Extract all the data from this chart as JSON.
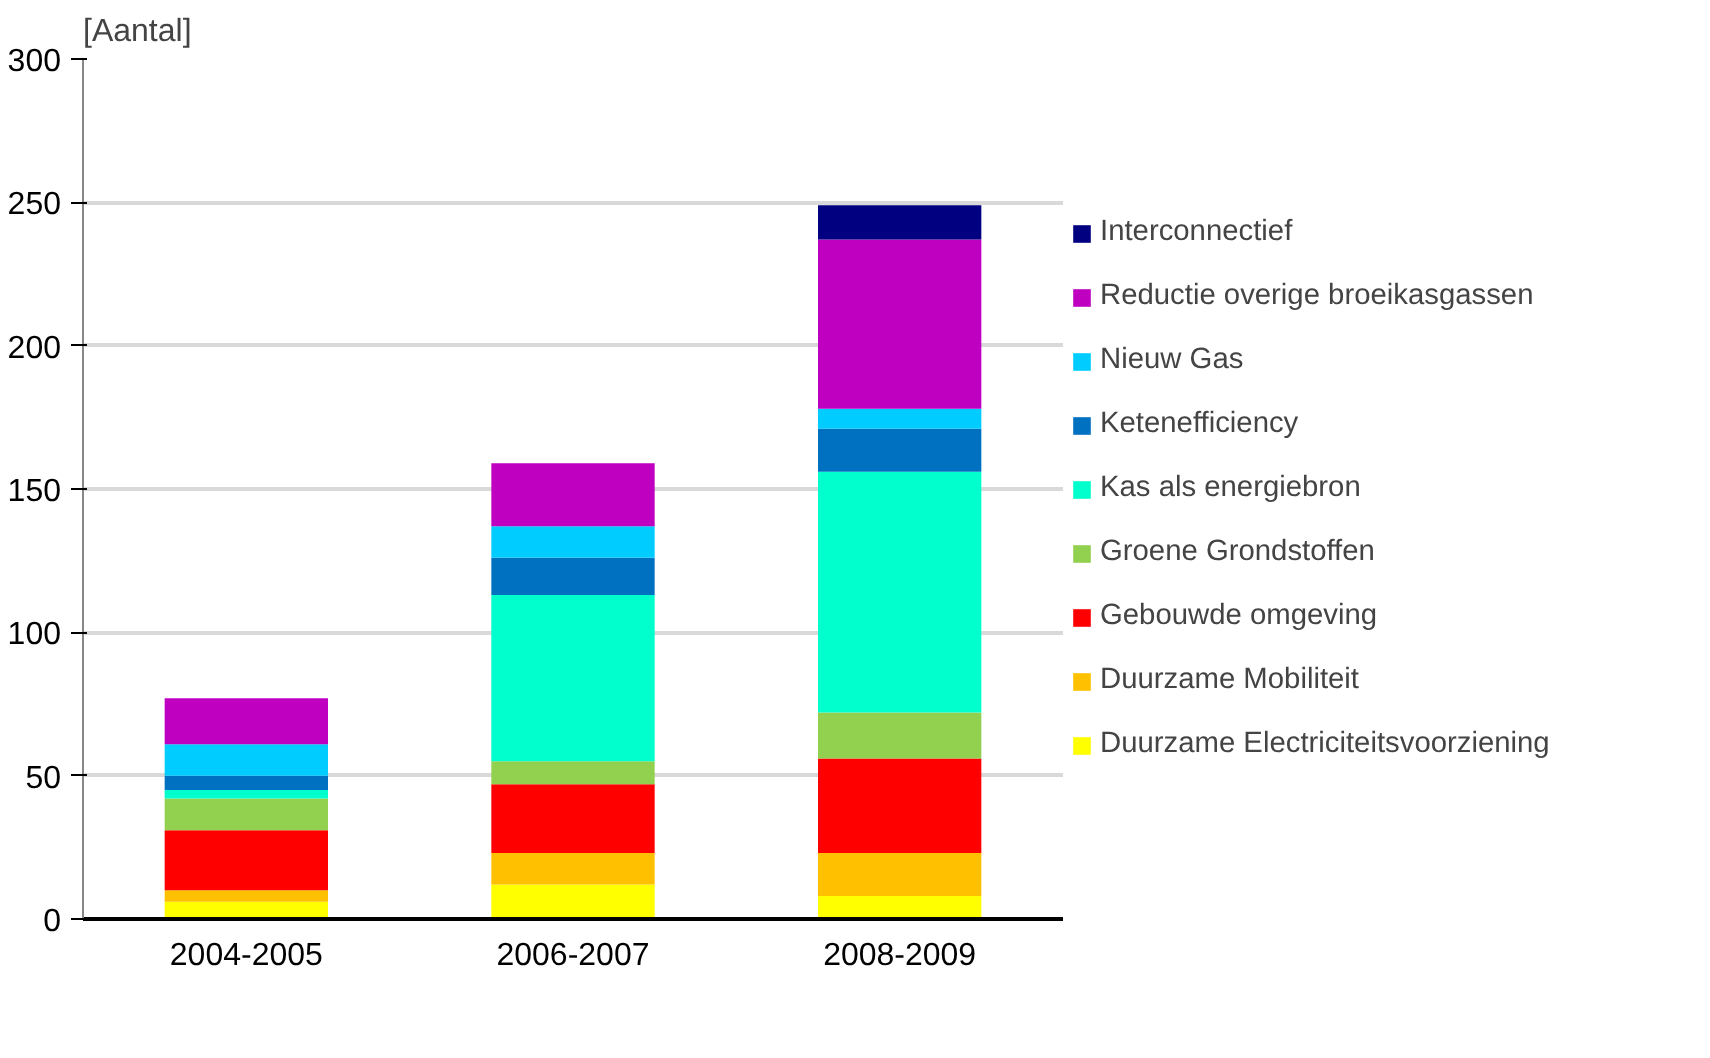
{
  "chart_data": {
    "type": "bar",
    "stacked": true,
    "ylabel": "[Aantal]",
    "categories": [
      "2004-2005",
      "2006-2007",
      "2008-2009"
    ],
    "series": [
      {
        "name": "Duurzame Electriciteitsvoorziening",
        "color": "#ffff00",
        "values": [
          6,
          12,
          8
        ]
      },
      {
        "name": "Duurzame Mobiliteit",
        "color": "#ffc000",
        "values": [
          4,
          11,
          15
        ]
      },
      {
        "name": "Gebouwde omgeving",
        "color": "#ff0000",
        "values": [
          21,
          24,
          33
        ]
      },
      {
        "name": "Groene Grondstoffen",
        "color": "#92d050",
        "values": [
          11,
          8,
          16
        ]
      },
      {
        "name": "Kas als energiebron",
        "color": "#00ffcc",
        "values": [
          3,
          58,
          84
        ]
      },
      {
        "name": "Ketenefficiency",
        "color": "#0070c0",
        "values": [
          5,
          13,
          15
        ]
      },
      {
        "name": "Nieuw Gas",
        "color": "#00ccff",
        "values": [
          11,
          11,
          7
        ]
      },
      {
        "name": "Reductie overige broeikasgassen",
        "color": "#c000c0",
        "values": [
          16,
          22,
          59
        ]
      },
      {
        "name": "Interconnectief",
        "color": "#000080",
        "values": [
          0,
          0,
          12
        ]
      }
    ],
    "ylim": [
      0,
      300
    ],
    "yticks": [
      0,
      50,
      100,
      150,
      200,
      250,
      300
    ],
    "grid": "y",
    "legend": "right"
  }
}
